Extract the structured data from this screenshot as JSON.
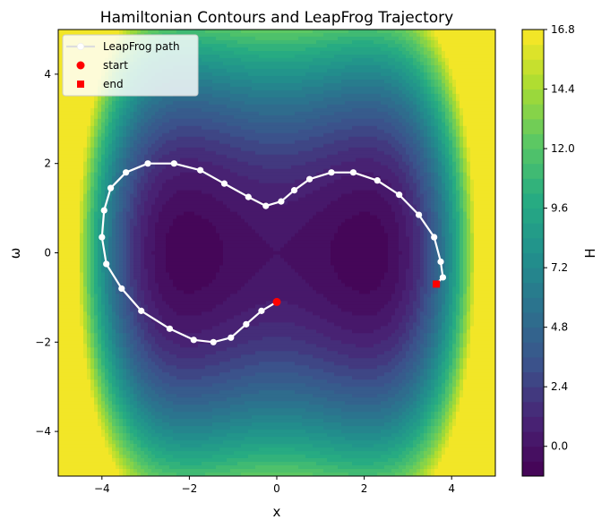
{
  "chart_data": {
    "type": "contour",
    "title": "Hamiltonian Contours and LeapFrog Trajectory",
    "xlabel": "x",
    "ylabel": "ω",
    "colorbar_label": "H",
    "xlim": [
      -5,
      5
    ],
    "ylim": [
      -5,
      5
    ],
    "xticks": [
      -4,
      -2,
      0,
      2,
      4
    ],
    "yticks": [
      -4,
      -2,
      0,
      2,
      4
    ],
    "colorbar_range": [
      -1.2,
      16.8
    ],
    "colorbar_ticks": [
      "0.0",
      "2.4",
      "4.8",
      "7.2",
      "9.6",
      "12.0",
      "14.4",
      "16.8"
    ],
    "colormap": "viridis",
    "grid": false,
    "legend_position": "top-left",
    "legend": [
      {
        "label": "LeapFrog path",
        "marker": "line-circle",
        "color": "#ffffff"
      },
      {
        "label": "start",
        "marker": "circle",
        "color": "#ff0000"
      },
      {
        "label": "end",
        "marker": "square",
        "color": "#ff0000"
      }
    ],
    "series": [
      {
        "name": "LeapFrog path",
        "x": [
          0.0,
          -0.35,
          -0.7,
          -1.05,
          -1.45,
          -1.9,
          -2.45,
          -3.1,
          -3.55,
          -3.9,
          -4.0,
          -3.95,
          -3.8,
          -3.45,
          -2.95,
          -2.35,
          -1.75,
          -1.2,
          -0.65,
          -0.25,
          0.1,
          0.4,
          0.75,
          1.25,
          1.75,
          2.3,
          2.8,
          3.25,
          3.6,
          3.75,
          3.8,
          3.65
        ],
        "y": [
          -1.1,
          -1.3,
          -1.6,
          -1.9,
          -2.0,
          -1.95,
          -1.7,
          -1.3,
          -0.8,
          -0.25,
          0.35,
          0.95,
          1.45,
          1.8,
          2.0,
          2.0,
          1.85,
          1.55,
          1.25,
          1.05,
          1.15,
          1.4,
          1.65,
          1.8,
          1.8,
          1.62,
          1.3,
          0.85,
          0.35,
          -0.2,
          -0.55,
          -0.7
        ]
      }
    ],
    "start": {
      "x": 0.0,
      "y": -1.1
    },
    "end": {
      "x": 3.65,
      "y": -0.7
    }
  }
}
